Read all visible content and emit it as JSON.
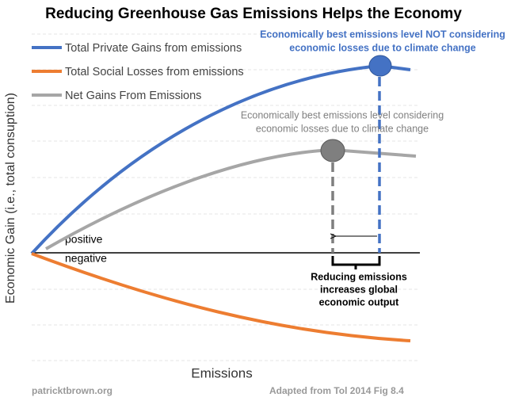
{
  "header": {
    "title": "Reducing Greenhouse Gas Emissions Helps the Economy"
  },
  "axes": {
    "y_label": "Economic Gain (i.e., total consuption)",
    "x_label": "Emissions",
    "above": "positive",
    "below": "negative"
  },
  "legend": [
    "Total Private Gains from emissions",
    "Total Social Losses from emissions",
    "Net Gains From Emissions"
  ],
  "annotations": {
    "private_best": [
      "Economically best emissions level NOT considering",
      "economic losses due to climate change"
    ],
    "net_best": [
      "Economically best emissions level considering",
      "economic losses due to climate change"
    ],
    "reduction": [
      "Reducing emissions",
      "increases global",
      "economic output"
    ]
  },
  "footer": {
    "left": "patricktbrown.org",
    "right": "Adapted from Tol 2014 Fig 8.4"
  }
}
